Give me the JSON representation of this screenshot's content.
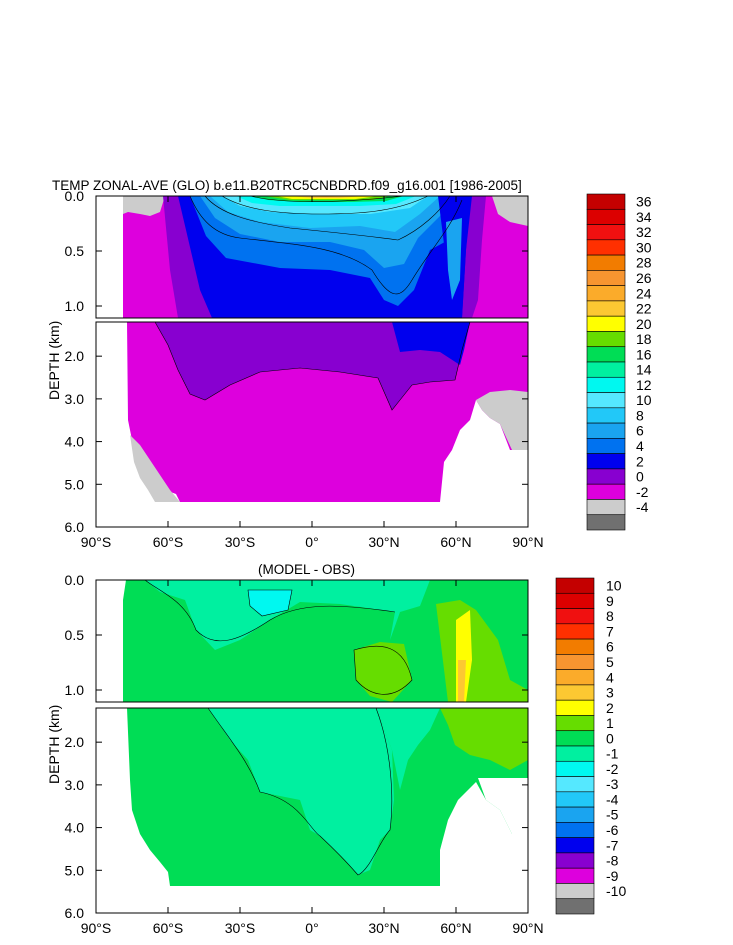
{
  "chart_data": [
    {
      "type": "heatmap",
      "title": "TEMP ZONAL-AVE (GLO) b.e11.B20TRC5CNBDRD.f09_g16.001 [1986-2005]",
      "ylabel": "DEPTH (km)",
      "xlabel": "",
      "xlim": [
        -90,
        90
      ],
      "ylim": [
        0,
        6
      ],
      "x_ticks": [
        -90,
        -60,
        -30,
        0,
        30,
        60,
        90
      ],
      "x_tick_labels": [
        "90°S",
        "60°S",
        "30°S",
        "0°",
        "30°N",
        "60°N",
        "90°N"
      ],
      "y_ticks_upper": [
        0.0,
        0.5,
        1.0
      ],
      "y_tick_labels_upper": [
        "0.0",
        "0.5",
        "1.0"
      ],
      "y_ticks_lower": [
        2.0,
        3.0,
        4.0,
        5.0,
        6.0
      ],
      "y_tick_labels_lower": [
        "2.0",
        "3.0",
        "4.0",
        "5.0",
        "6.0"
      ],
      "colorbar": {
        "labels": [
          "36",
          "34",
          "32",
          "30",
          "28",
          "26",
          "24",
          "22",
          "20",
          "18",
          "16",
          "14",
          "12",
          "10",
          "8",
          "6",
          "4",
          "2",
          "0",
          "-2",
          "-4"
        ],
        "colors": [
          "#c40000",
          "#dc0000",
          "#f01010",
          "#ff3000",
          "#f27c00",
          "#f79530",
          "#fbab2a",
          "#fcc832",
          "#ffff00",
          "#66dd00",
          "#00dd55",
          "#00f0a0",
          "#00f8f0",
          "#55e8ff",
          "#22c8f8",
          "#1aa4f0",
          "#0072f0",
          "#0000ee",
          "#8800d0",
          "#dd00dd",
          "#cccccc",
          "#707070"
        ]
      }
    },
    {
      "type": "heatmap",
      "title": "(MODEL - OBS)",
      "ylabel": "DEPTH (km)",
      "xlabel": "",
      "xlim": [
        -90,
        90
      ],
      "ylim": [
        0,
        6
      ],
      "x_ticks": [
        -90,
        -60,
        -30,
        0,
        30,
        60,
        90
      ],
      "x_tick_labels": [
        "90°S",
        "60°S",
        "30°S",
        "0°",
        "30°N",
        "60°N",
        "90°N"
      ],
      "y_ticks_upper": [
        0.0,
        0.5,
        1.0
      ],
      "y_tick_labels_upper": [
        "0.0",
        "0.5",
        "1.0"
      ],
      "y_ticks_lower": [
        2.0,
        3.0,
        4.0,
        5.0,
        6.0
      ],
      "y_tick_labels_lower": [
        "2.0",
        "3.0",
        "4.0",
        "5.0",
        "6.0"
      ],
      "colorbar": {
        "labels": [
          "10",
          "9",
          "8",
          "7",
          "6",
          "5",
          "4",
          "3",
          "2",
          "1",
          "0",
          "-1",
          "-2",
          "-3",
          "-4",
          "-5",
          "-6",
          "-7",
          "-8",
          "-9",
          "-10"
        ],
        "colors": [
          "#c40000",
          "#dc0000",
          "#f01010",
          "#ff3000",
          "#f27c00",
          "#f79530",
          "#fbab2a",
          "#fcc832",
          "#ffff00",
          "#66dd00",
          "#00dd55",
          "#00f0a0",
          "#00f8f0",
          "#55e8ff",
          "#22c8f8",
          "#1aa4f0",
          "#0072f0",
          "#0000ee",
          "#8800d0",
          "#dd00dd",
          "#cccccc",
          "#707070"
        ]
      }
    }
  ]
}
